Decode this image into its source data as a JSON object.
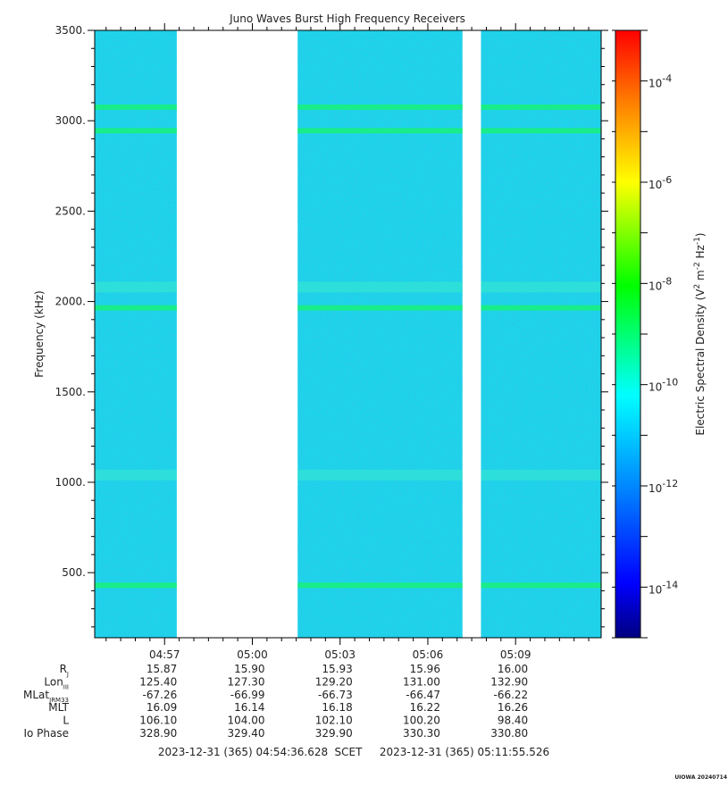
{
  "chart_data": {
    "type": "heatmap",
    "title": "Juno Waves Burst High Frequency Receivers",
    "ylabel": "Frequency (kHz)",
    "ylim": [
      140,
      3500
    ],
    "yticks": [
      500,
      1000,
      1500,
      2000,
      2500,
      3000,
      3500
    ],
    "ytick_labels": [
      "500.",
      "1000.",
      "1500.",
      "2000.",
      "2500.",
      "3000.",
      "3500."
    ],
    "xticks": [
      "04:57",
      "05:00",
      "05:03",
      "05:06",
      "05:09"
    ],
    "time_start": "2023-12-31 (365) 04:54:36.628",
    "time_end": "2023-12-31 (365) 05:11:55.526",
    "time_label": "SCET",
    "data_segments": [
      [
        "04:54:36",
        "04:57:25"
      ],
      [
        "05:01:33",
        "05:07:11"
      ],
      [
        "05:07:49",
        "05:11:55"
      ]
    ],
    "emission_bands_khz": [
      3075,
      2945,
      1965,
      2080,
      1040,
      430
    ],
    "colorbar": {
      "label": "Electric Spectral Density (V",
      "label_sup1": "2",
      "label_mid": " m",
      "label_sup2": "-2",
      "label_mid2": " Hz",
      "label_sup3": "-1",
      "label_end": ")",
      "scale": "log",
      "range": [
        1e-15,
        0.001
      ],
      "ticks": [
        {
          "base": "10",
          "exp": "-4"
        },
        {
          "base": "10",
          "exp": "-6"
        },
        {
          "base": "10",
          "exp": "-8"
        },
        {
          "base": "10",
          "exp": "-10"
        },
        {
          "base": "10",
          "exp": "-12"
        },
        {
          "base": "10",
          "exp": "-14"
        }
      ],
      "colors": [
        "#00007f",
        "#0000ff",
        "#0080ff",
        "#00ffff",
        "#00ff00",
        "#ffff00",
        "#ff8000",
        "#ff0000"
      ]
    },
    "ephemeris": {
      "rows": [
        {
          "label": "R",
          "sub": "J",
          "values": [
            "15.87",
            "15.90",
            "15.93",
            "15.96",
            "16.00"
          ]
        },
        {
          "label": "Lon",
          "sub": "III",
          "values": [
            "125.40",
            "127.30",
            "129.20",
            "131.00",
            "132.90"
          ]
        },
        {
          "label": "MLat",
          "sub": "JRM33",
          "values": [
            "-67.26",
            "-66.99",
            "-66.73",
            "-66.47",
            "-66.22"
          ]
        },
        {
          "label": "MLT",
          "sub": "",
          "values": [
            "16.09",
            "16.14",
            "16.18",
            "16.22",
            "16.26"
          ]
        },
        {
          "label": "L",
          "sub": "",
          "values": [
            "106.10",
            "104.00",
            "102.10",
            "100.20",
            "98.40"
          ]
        },
        {
          "label": "Io Phase",
          "sub": "",
          "values": [
            "328.90",
            "329.40",
            "329.90",
            "330.30",
            "330.80"
          ]
        }
      ]
    }
  },
  "footer": {
    "stamp": "UIOWA 20240714"
  }
}
